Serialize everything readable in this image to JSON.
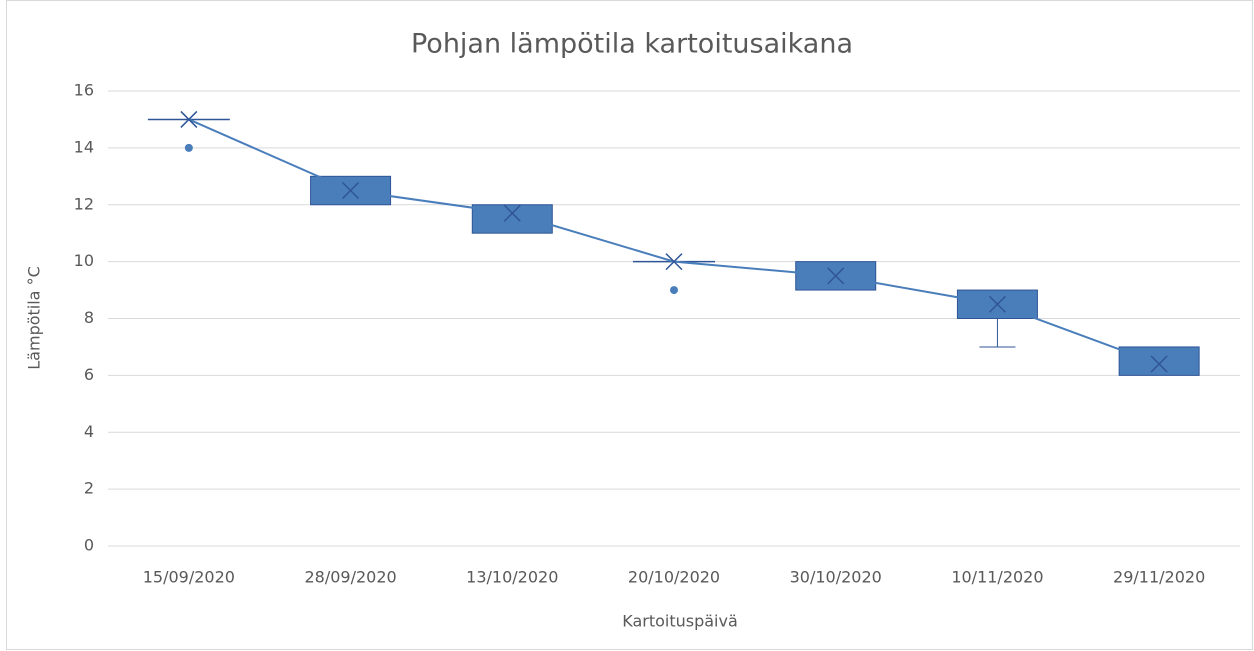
{
  "chart_data": {
    "type": "box",
    "title": "Pohjan lämpötila kartoitusaikana",
    "x_label": "Kartoituspäivä",
    "y_label": "Lämpötila °C",
    "categories": [
      "15/09/2020",
      "28/09/2020",
      "13/10/2020",
      "20/10/2020",
      "30/10/2020",
      "10/11/2020",
      "29/11/2020"
    ],
    "color": "#4a7ebb",
    "edge_color": "#2f5597",
    "boxes": [
      {
        "min": 15,
        "q1": 15,
        "q3": 15,
        "max": 15,
        "mean": 15,
        "outliers": [
          14
        ]
      },
      {
        "min": 12,
        "q1": 12,
        "q3": 13,
        "max": 13,
        "mean": 12.5,
        "outliers": []
      },
      {
        "min": 11,
        "q1": 11,
        "q3": 12,
        "max": 12,
        "mean": 11.7,
        "outliers": []
      },
      {
        "min": 10,
        "q1": 10,
        "q3": 10,
        "max": 10,
        "mean": 10,
        "outliers": [
          9
        ]
      },
      {
        "min": 9,
        "q1": 9,
        "q3": 10,
        "max": 10,
        "mean": 9.5,
        "outliers": []
      },
      {
        "min": 7,
        "q1": 8,
        "q3": 9,
        "max": 9,
        "mean": 8.5,
        "outliers": []
      },
      {
        "min": 6,
        "q1": 6,
        "q3": 7,
        "max": 7,
        "mean": 6.4,
        "outliers": []
      }
    ],
    "ylim": [
      0,
      16
    ],
    "yticks": [
      0,
      2,
      4,
      6,
      8,
      10,
      12,
      14,
      16
    ],
    "grid": true
  }
}
